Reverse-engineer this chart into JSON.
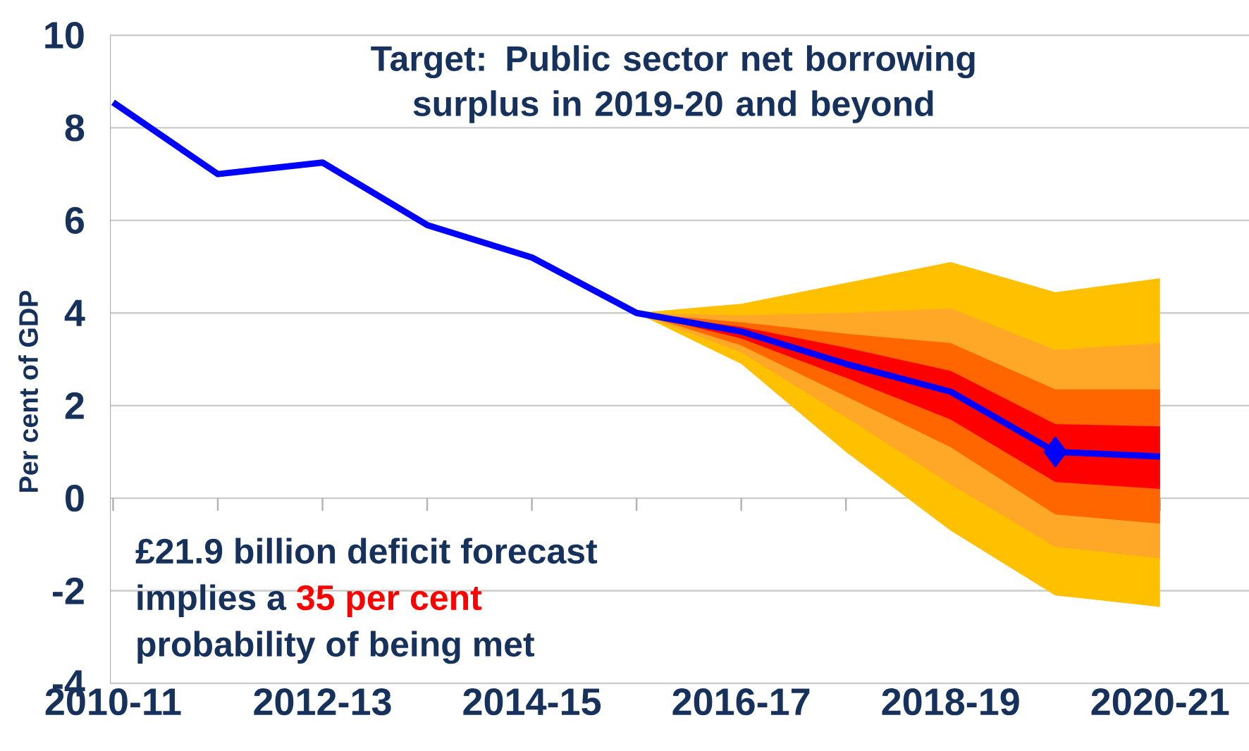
{
  "chart_data": {
    "type": "line",
    "ylabel": "Per cent of GDP",
    "categories": [
      "2010-11",
      null,
      "2012-13",
      null,
      "2014-15",
      null,
      "2016-17",
      null,
      "2018-19",
      null,
      "2020-21"
    ],
    "ylim": [
      -4,
      10
    ],
    "yticks": [
      -4,
      -2,
      0,
      2,
      4,
      6,
      8,
      10
    ],
    "grid": "y",
    "annotations": [
      "Target: Public sector net borrowing surplus in 2019-20 and beyond",
      "£21.9 billion deficit forecast",
      "implies a",
      "35 per cent",
      "probability of being met"
    ],
    "series": [
      {
        "type": "line",
        "color": "#ffc000",
        "values": [
          null,
          null,
          null,
          null,
          null,
          null,
          null,
          null,
          null,
          null,
          null
        ],
        "lower": [
          null,
          null,
          null,
          null,
          null,
          4.0,
          2.9,
          1.0,
          -0.7,
          -2.1,
          -2.35
        ],
        "upper": [
          null,
          null,
          null,
          null,
          null,
          4.0,
          4.2,
          4.65,
          5.1,
          4.45,
          4.75
        ]
      },
      {
        "type": "line",
        "color": "#ffa726",
        "values": [
          null,
          null,
          null,
          null,
          null,
          null,
          null,
          null,
          null,
          null,
          null
        ],
        "lower": [
          null,
          null,
          null,
          null,
          null,
          4.0,
          3.15,
          1.75,
          0.3,
          -1.05,
          -1.3
        ],
        "upper": [
          null,
          null,
          null,
          null,
          null,
          4.0,
          3.95,
          4.0,
          4.1,
          3.2,
          3.35
        ]
      },
      {
        "type": "line",
        "color": "#ff6600",
        "values": [
          null,
          null,
          null,
          null,
          null,
          null,
          null,
          null,
          null,
          null,
          null
        ],
        "lower": [
          null,
          null,
          null,
          null,
          null,
          4.0,
          3.3,
          2.2,
          1.1,
          -0.35,
          -0.55
        ],
        "upper": [
          null,
          null,
          null,
          null,
          null,
          4.0,
          3.8,
          3.55,
          3.35,
          2.35,
          2.35
        ]
      },
      {
        "type": "line",
        "color": "#ff0000",
        "values": [
          null,
          null,
          null,
          null,
          null,
          null,
          null,
          null,
          null,
          null,
          null
        ],
        "lower": [
          null,
          null,
          null,
          null,
          null,
          4.0,
          3.45,
          2.6,
          1.7,
          0.35,
          0.2
        ],
        "upper": [
          null,
          null,
          null,
          null,
          null,
          4.0,
          3.7,
          3.25,
          2.75,
          1.6,
          1.55
        ]
      },
      {
        "color": "#0000ff",
        "marker": "none",
        "values": [
          8.55,
          7.0,
          7.25,
          5.9,
          5.2,
          4.0,
          3.6,
          2.9,
          2.3,
          1.0,
          0.9
        ]
      },
      {
        "type": "scatter",
        "color": "#0000ff",
        "marker": "diamond",
        "values": [
          null,
          null,
          null,
          null,
          null,
          null,
          null,
          null,
          null,
          1.0,
          null
        ]
      }
    ]
  }
}
